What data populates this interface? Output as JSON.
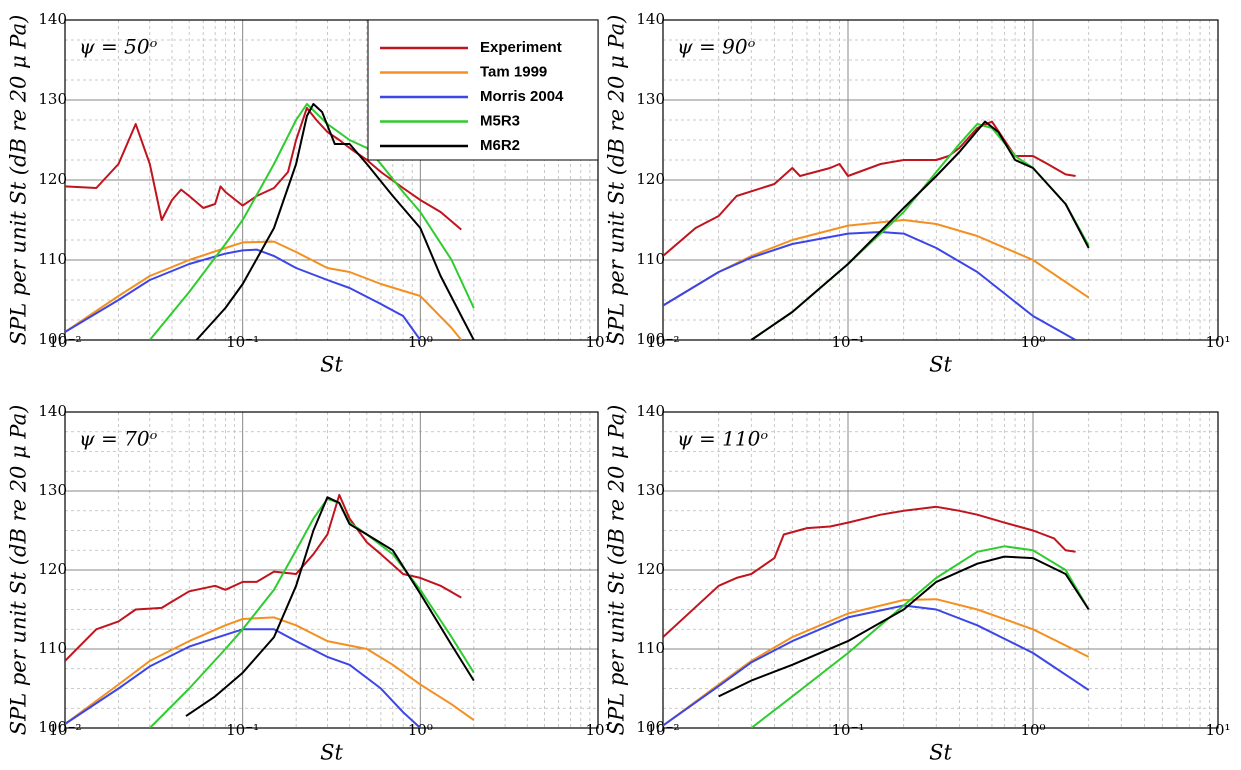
{
  "chart_data": [
    {
      "type": "line",
      "title": "ψ = 50ᵒ",
      "x_label": "St",
      "y_label": "SPL per unit St (dB re 20 μ Pa)",
      "xscale": "log",
      "xlim": [
        0.01,
        10
      ],
      "xticks": [
        {
          "value": 0.01,
          "label": "10⁻²"
        },
        {
          "value": 0.1,
          "label": "10⁻¹"
        },
        {
          "value": 1,
          "label": "10⁰"
        },
        {
          "value": 10,
          "label": "10¹"
        }
      ],
      "ylim": [
        100,
        140
      ],
      "yticks": [
        100,
        110,
        120,
        130,
        140
      ],
      "grid": true,
      "legend": "upper right",
      "series": [
        {
          "name": "Experiment",
          "color": "#c0141e",
          "x": [
            0.01,
            0.015,
            0.02,
            0.025,
            0.03,
            0.035,
            0.04,
            0.045,
            0.05,
            0.06,
            0.07,
            0.075,
            0.08,
            0.1,
            0.12,
            0.15,
            0.18,
            0.2,
            0.23,
            0.26,
            0.3,
            0.35,
            0.4,
            0.5,
            0.6,
            0.8,
            1.0,
            1.3,
            1.7
          ],
          "values": [
            119.2,
            119,
            122,
            127,
            122,
            115,
            117.5,
            118.8,
            118,
            116.5,
            117,
            119.2,
            118.5,
            116.8,
            118,
            119,
            121,
            125,
            129,
            127.5,
            126,
            125,
            124,
            122.5,
            121,
            119,
            117.5,
            116,
            113.8
          ]
        },
        {
          "name": "Tam 1999",
          "color": "#f39021",
          "x": [
            0.01,
            0.02,
            0.03,
            0.05,
            0.08,
            0.1,
            0.15,
            0.2,
            0.3,
            0.4,
            0.6,
            1.0,
            1.5,
            1.7
          ],
          "values": [
            101,
            105.5,
            108,
            110,
            111.5,
            112.2,
            112.3,
            111,
            109,
            108.5,
            107,
            105.5,
            101.5,
            100
          ]
        },
        {
          "name": "Morris 2004",
          "color": "#3c46e6",
          "x": [
            0.01,
            0.02,
            0.03,
            0.05,
            0.08,
            0.1,
            0.12,
            0.15,
            0.2,
            0.3,
            0.4,
            0.6,
            0.8,
            1.0
          ],
          "values": [
            101,
            105,
            107.5,
            109.5,
            110.8,
            111.2,
            111.3,
            110.5,
            109,
            107.5,
            106.5,
            104.5,
            103,
            100
          ]
        },
        {
          "name": "M5R3",
          "color": "#2ecc2e",
          "x": [
            0.03,
            0.05,
            0.08,
            0.1,
            0.15,
            0.2,
            0.23,
            0.3,
            0.4,
            0.5,
            0.6,
            0.8,
            1.0,
            1.5,
            2.0
          ],
          "values": [
            100,
            106,
            112,
            115,
            122,
            127.5,
            129.5,
            127,
            125,
            124,
            122,
            118.5,
            116,
            110,
            104
          ]
        },
        {
          "name": "M6R2",
          "color": "#000000",
          "x": [
            0.055,
            0.08,
            0.1,
            0.15,
            0.2,
            0.23,
            0.25,
            0.28,
            0.33,
            0.4,
            0.5,
            0.7,
            1.0,
            1.3,
            1.7,
            2.0
          ],
          "values": [
            100,
            104,
            107,
            114,
            122,
            128,
            129.5,
            128.5,
            124.5,
            124.5,
            122,
            118,
            114,
            108,
            103,
            100
          ]
        }
      ]
    },
    {
      "type": "line",
      "title": "ψ = 90ᵒ",
      "x_label": "St",
      "y_label": "SPL per unit St (dB re 20 μ Pa)",
      "xscale": "log",
      "xlim": [
        0.01,
        10
      ],
      "xticks": [
        {
          "value": 0.01,
          "label": "10⁻²"
        },
        {
          "value": 0.1,
          "label": "10⁻¹"
        },
        {
          "value": 1,
          "label": "10⁰"
        },
        {
          "value": 10,
          "label": "10¹"
        }
      ],
      "ylim": [
        100,
        140
      ],
      "yticks": [
        100,
        110,
        120,
        130,
        140
      ],
      "grid": true,
      "series": [
        {
          "name": "Experiment",
          "color": "#c0141e",
          "x": [
            0.01,
            0.015,
            0.02,
            0.025,
            0.04,
            0.05,
            0.055,
            0.08,
            0.09,
            0.1,
            0.15,
            0.2,
            0.3,
            0.35,
            0.4,
            0.5,
            0.6,
            0.7,
            0.8,
            1.0,
            1.2,
            1.5,
            1.7
          ],
          "values": [
            110.5,
            114,
            115.5,
            118,
            119.5,
            121.5,
            120.5,
            121.5,
            122,
            120.5,
            122,
            122.5,
            122.5,
            123,
            124,
            126.5,
            127.3,
            125,
            123,
            123,
            122,
            120.7,
            120.5
          ]
        },
        {
          "name": "Tam 1999",
          "color": "#f39021",
          "x": [
            0.01,
            0.02,
            0.03,
            0.05,
            0.1,
            0.2,
            0.3,
            0.5,
            1.0,
            2.0
          ],
          "values": [
            104.3,
            108.5,
            110.5,
            112.5,
            114.3,
            115,
            114.5,
            113,
            110,
            105.3
          ]
        },
        {
          "name": "Morris 2004",
          "color": "#3c46e6",
          "x": [
            0.01,
            0.02,
            0.03,
            0.05,
            0.1,
            0.15,
            0.2,
            0.3,
            0.5,
            1.0,
            1.7
          ],
          "values": [
            104.3,
            108.5,
            110.3,
            112,
            113.3,
            113.5,
            113.3,
            111.5,
            108.5,
            103,
            100
          ]
        },
        {
          "name": "M5R3",
          "color": "#2ecc2e",
          "x": [
            0.03,
            0.05,
            0.1,
            0.2,
            0.3,
            0.4,
            0.5,
            0.6,
            0.8,
            1.0,
            1.5,
            2.0
          ],
          "values": [
            100,
            103.5,
            109.5,
            116,
            121,
            124.5,
            127,
            126.5,
            123,
            121.5,
            117,
            111.8
          ]
        },
        {
          "name": "M6R2",
          "color": "#000000",
          "x": [
            0.03,
            0.05,
            0.1,
            0.2,
            0.3,
            0.4,
            0.55,
            0.65,
            0.8,
            1.0,
            1.5,
            2.0
          ],
          "values": [
            100,
            103.5,
            109.5,
            116.5,
            120.5,
            123.5,
            127.3,
            126,
            122.5,
            121.5,
            117,
            111.5
          ]
        }
      ]
    },
    {
      "type": "line",
      "title": "ψ = 70ᵒ",
      "x_label": "St",
      "y_label": "SPL per unit St (dB re 20 μ Pa)",
      "xscale": "log",
      "xlim": [
        0.01,
        10
      ],
      "xticks": [
        {
          "value": 0.01,
          "label": "10⁻²"
        },
        {
          "value": 0.1,
          "label": "10⁻¹"
        },
        {
          "value": 1,
          "label": "10⁰"
        },
        {
          "value": 10,
          "label": "10¹"
        }
      ],
      "ylim": [
        100,
        140
      ],
      "yticks": [
        100,
        110,
        120,
        130,
        140
      ],
      "grid": true,
      "series": [
        {
          "name": "Experiment",
          "color": "#c0141e",
          "x": [
            0.01,
            0.015,
            0.02,
            0.025,
            0.035,
            0.04,
            0.05,
            0.07,
            0.08,
            0.1,
            0.12,
            0.15,
            0.2,
            0.25,
            0.3,
            0.35,
            0.4,
            0.5,
            0.6,
            0.8,
            1.0,
            1.3,
            1.7
          ],
          "values": [
            108.5,
            112.5,
            113.5,
            115,
            115.2,
            116,
            117.3,
            118,
            117.5,
            118.5,
            118.5,
            119.8,
            119.5,
            122,
            124.5,
            129.5,
            126.5,
            123.5,
            122,
            119.5,
            119,
            118,
            116.5
          ]
        },
        {
          "name": "Tam 1999",
          "color": "#f39021",
          "x": [
            0.01,
            0.02,
            0.03,
            0.05,
            0.08,
            0.1,
            0.15,
            0.2,
            0.3,
            0.5,
            0.7,
            1.0,
            1.5,
            2.0
          ],
          "values": [
            100.5,
            105.5,
            108.5,
            111,
            113,
            113.8,
            114,
            113,
            111,
            110,
            108,
            105.5,
            103,
            101
          ]
        },
        {
          "name": "Morris 2004",
          "color": "#3c46e6",
          "x": [
            0.01,
            0.02,
            0.03,
            0.05,
            0.08,
            0.1,
            0.15,
            0.2,
            0.3,
            0.4,
            0.6,
            0.8,
            1.0
          ],
          "values": [
            100.5,
            105,
            107.8,
            110.3,
            111.8,
            112.5,
            112.5,
            111,
            109,
            108,
            105,
            102,
            100
          ]
        },
        {
          "name": "M5R3",
          "color": "#2ecc2e",
          "x": [
            0.03,
            0.05,
            0.08,
            0.1,
            0.15,
            0.2,
            0.25,
            0.3,
            0.35,
            0.4,
            0.5,
            0.7,
            1.0,
            1.5,
            2.0
          ],
          "values": [
            100,
            105,
            110,
            112.5,
            117.5,
            122.5,
            126.5,
            129,
            128.5,
            126,
            124.5,
            122,
            117.5,
            111.5,
            107
          ]
        },
        {
          "name": "M6R2",
          "color": "#000000",
          "x": [
            0.048,
            0.07,
            0.1,
            0.15,
            0.2,
            0.25,
            0.3,
            0.35,
            0.4,
            0.5,
            0.7,
            1.0,
            1.5,
            2.0
          ],
          "values": [
            101.5,
            104,
            107,
            111.5,
            118,
            125,
            129.2,
            128.5,
            125.8,
            124.5,
            122.5,
            117,
            110.5,
            106
          ]
        }
      ]
    },
    {
      "type": "line",
      "title": "ψ = 110ᵒ",
      "x_label": "St",
      "y_label": "SPL per unit St (dB re 20 μ Pa)",
      "xscale": "log",
      "xlim": [
        0.01,
        10
      ],
      "xticks": [
        {
          "value": 0.01,
          "label": "10⁻²"
        },
        {
          "value": 0.1,
          "label": "10⁻¹"
        },
        {
          "value": 1,
          "label": "10⁰"
        },
        {
          "value": 10,
          "label": "10¹"
        }
      ],
      "ylim": [
        100,
        140
      ],
      "yticks": [
        100,
        110,
        120,
        130,
        140
      ],
      "grid": true,
      "series": [
        {
          "name": "Experiment",
          "color": "#c0141e",
          "x": [
            0.01,
            0.02,
            0.025,
            0.03,
            0.04,
            0.045,
            0.06,
            0.08,
            0.1,
            0.15,
            0.2,
            0.3,
            0.4,
            0.5,
            0.7,
            1.0,
            1.3,
            1.5,
            1.7
          ],
          "values": [
            111.5,
            118,
            119,
            119.5,
            121.5,
            124.5,
            125.3,
            125.5,
            126,
            127,
            127.5,
            128,
            127.5,
            127,
            126,
            125,
            124,
            122.5,
            122.3
          ]
        },
        {
          "name": "Tam 1999",
          "color": "#f39021",
          "x": [
            0.01,
            0.02,
            0.03,
            0.05,
            0.1,
            0.2,
            0.3,
            0.5,
            1.0,
            2.0
          ],
          "values": [
            100.3,
            105.5,
            108.5,
            111.5,
            114.5,
            116.2,
            116.3,
            115,
            112.5,
            109
          ]
        },
        {
          "name": "Morris 2004",
          "color": "#3c46e6",
          "x": [
            0.01,
            0.02,
            0.03,
            0.05,
            0.1,
            0.2,
            0.3,
            0.5,
            1.0,
            2.0
          ],
          "values": [
            100.3,
            105.3,
            108.3,
            111,
            114,
            115.5,
            115,
            113,
            109.5,
            104.8
          ]
        },
        {
          "name": "M5R3",
          "color": "#2ecc2e",
          "x": [
            0.03,
            0.05,
            0.1,
            0.2,
            0.3,
            0.5,
            0.7,
            1.0,
            1.5,
            2.0
          ],
          "values": [
            100,
            104,
            109.5,
            115.5,
            119,
            122.3,
            123,
            122.5,
            120,
            115
          ]
        },
        {
          "name": "M6R2",
          "color": "#000000",
          "x": [
            0.02,
            0.03,
            0.05,
            0.1,
            0.2,
            0.3,
            0.5,
            0.7,
            1.0,
            1.5,
            2.0
          ],
          "values": [
            104,
            106,
            108,
            111,
            115,
            118.5,
            120.8,
            121.7,
            121.5,
            119.5,
            115
          ]
        }
      ]
    }
  ]
}
